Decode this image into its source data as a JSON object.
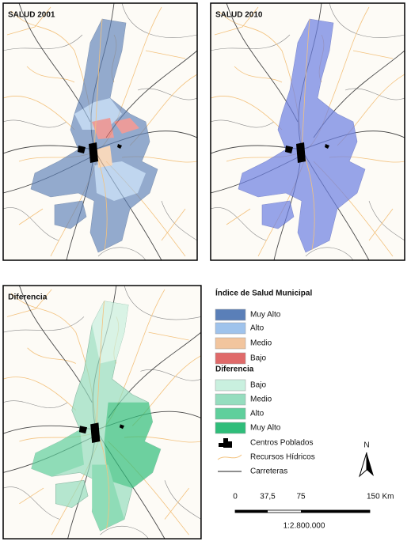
{
  "maps": [
    {
      "title": "SALUD 2001"
    },
    {
      "title": "SALUD 2010"
    },
    {
      "title": "Diferencia"
    }
  ],
  "legend": {
    "title": "Índice de Salud Municipal",
    "index_items": [
      {
        "label": "Muy Alto",
        "color": "#5a7fb8"
      },
      {
        "label": "Alto",
        "color": "#9fc3ec"
      },
      {
        "label": "Medio",
        "color": "#f2c59e"
      },
      {
        "label": "Bajo",
        "color": "#e06a6a"
      }
    ],
    "difference_title": "Diferencia",
    "difference_items": [
      {
        "label": "Bajo",
        "color": "#c9f0df"
      },
      {
        "label": "Medio",
        "color": "#96ddbf"
      },
      {
        "label": "Alto",
        "color": "#5fcf9c"
      },
      {
        "label": "Muy Alto",
        "color": "#2fbd7a"
      }
    ],
    "other_items": [
      {
        "label": "Centros Poblados",
        "symbol": "settlement"
      },
      {
        "label": "Recursos Hídricos",
        "symbol": "river"
      },
      {
        "label": "Carreteras",
        "symbol": "road"
      }
    ]
  },
  "north": "N",
  "scale_bar": {
    "labels": [
      "0",
      "37,5",
      "75",
      "150 Km"
    ],
    "ratio": "1:2.800.000"
  }
}
